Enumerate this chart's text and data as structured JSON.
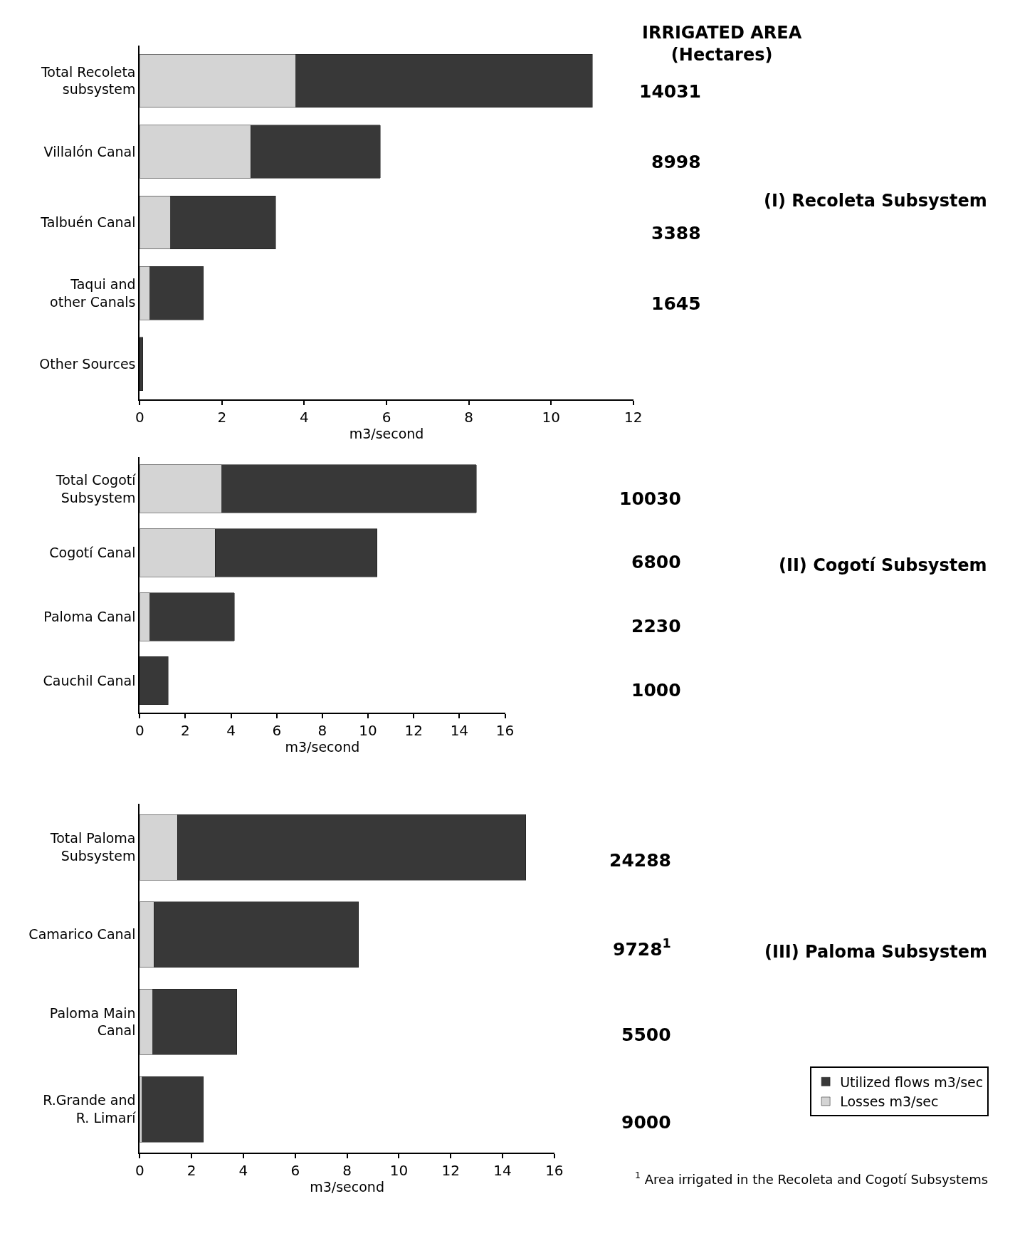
{
  "chart_data": [
    {
      "type": "bar",
      "orientation": "horizontal",
      "stacked": true,
      "subtitle": "IRRIGATED AREA\n(Hectares)",
      "xlabel": "m3/second",
      "categories": [
        "Total Recoleta subsystem",
        "Villalón Canal",
        "Talbuén Canal",
        "Taqui and other Canals",
        "Other Sources"
      ],
      "series": [
        {
          "color": "#d4d4d4",
          "values": [
            3.8,
            2.7,
            0.75,
            0.25,
            0
          ]
        },
        {
          "color": "#383838",
          "values": [
            7.2,
            3.15,
            2.55,
            1.3,
            0.08
          ]
        }
      ],
      "xlim": [
        0,
        12
      ],
      "xticks": [
        0,
        2,
        4,
        6,
        8,
        10,
        12
      ],
      "legend": false,
      "annotations": [
        "(I) Recoleta Subsystem",
        "14031",
        "8998",
        "3388",
        "1645"
      ]
    },
    {
      "type": "bar",
      "orientation": "horizontal",
      "stacked": true,
      "xlabel": "m3/second",
      "categories": [
        "Total Cogotí Subsystem",
        "Cogotí Canal",
        "Paloma Canal",
        "Cauchil Canal"
      ],
      "series": [
        {
          "color": "#d4d4d4",
          "values": [
            3.6,
            3.3,
            0.45,
            0
          ]
        },
        {
          "color": "#383838",
          "values": [
            11.15,
            7.1,
            3.7,
            1.25
          ]
        }
      ],
      "xlim": [
        0,
        16
      ],
      "xticks": [
        0,
        2,
        4,
        6,
        8,
        10,
        12,
        14,
        16
      ],
      "legend": false,
      "annotations": [
        "(II) Cogotí Subsystem",
        "10030",
        "6800",
        "2230",
        "1000"
      ]
    },
    {
      "type": "bar",
      "orientation": "horizontal",
      "stacked": true,
      "xlabel": "m3/second",
      "categories": [
        "Total Paloma Subsystem",
        "Camarico Canal",
        "Paloma Main Canal",
        "R.Grande and R. Limarí"
      ],
      "series": [
        {
          "name": "Losses m3/sec",
          "color": "#d4d4d4",
          "values": [
            1.45,
            0.55,
            0.5,
            0.1
          ]
        },
        {
          "name": "Utilized flows m3/sec",
          "color": "#383838",
          "values": [
            13.45,
            7.9,
            3.25,
            2.35
          ]
        }
      ],
      "xlim": [
        0,
        16
      ],
      "xticks": [
        0,
        2,
        4,
        6,
        8,
        10,
        12,
        14,
        16
      ],
      "legend": "bottom right",
      "annotations": [
        "(III) Paloma Subsystem",
        "24288",
        "9728$^{1}$",
        "5500",
        "9000",
        "$^{1}$ Area irrigated in the Recoleta and Cogotí Subsystems"
      ]
    }
  ]
}
